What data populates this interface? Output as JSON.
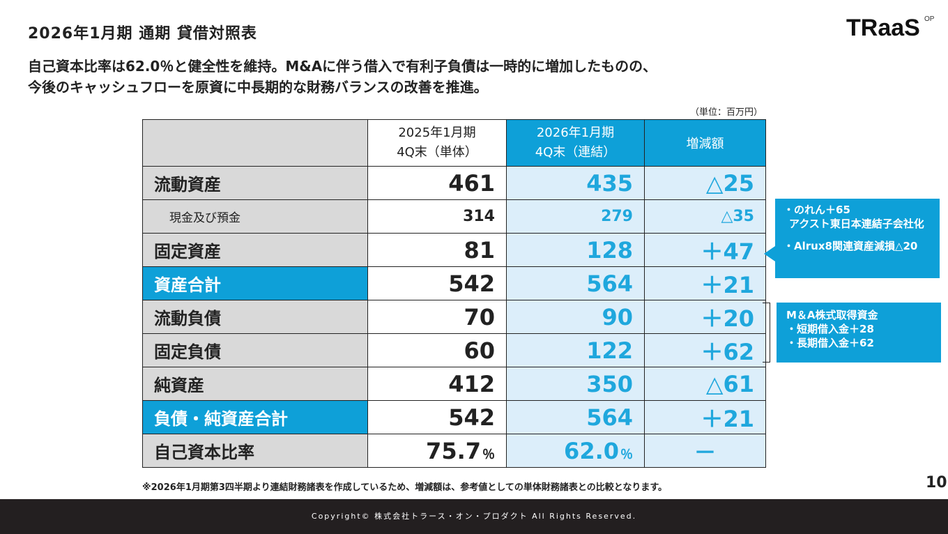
{
  "title": "2026年1月期 通期 貸借対照表",
  "logo": {
    "text": "TRaaS",
    "suffix": "OP"
  },
  "lead": {
    "line1": "自己資本比率は62.0％と健全性を維持。M&Aに伴う借入で有利子負債は一時的に増加したものの、",
    "line2": "今後のキャッシュフローを原資に中長期的な財務バランスの改善を推進。"
  },
  "unit_label": "（単位：百万円）",
  "table": {
    "headers": {
      "col1_line1": "2025年1月期",
      "col1_line2": "4Q末（単体）",
      "col2_line1": "2026年1月期",
      "col2_line2": "4Q末（連結）",
      "col3": "増減額"
    },
    "rows": [
      {
        "label": "流動資産",
        "fy2025": "461",
        "fy2026": "435",
        "delta": "△25"
      },
      {
        "label": "現金及び預金",
        "fy2025": "314",
        "fy2026": "279",
        "delta": "△35"
      },
      {
        "label": "固定資産",
        "fy2025": "81",
        "fy2026": "128",
        "delta": "＋47"
      },
      {
        "label": "資産合計",
        "fy2025": "542",
        "fy2026": "564",
        "delta": "＋21"
      },
      {
        "label": "流動負債",
        "fy2025": "70",
        "fy2026": "90",
        "delta": "＋20"
      },
      {
        "label": "固定負債",
        "fy2025": "60",
        "fy2026": "122",
        "delta": "＋62"
      },
      {
        "label": "純資産",
        "fy2025": "412",
        "fy2026": "350",
        "delta": "△61"
      },
      {
        "label": "負債・純資産合計",
        "fy2025": "542",
        "fy2026": "564",
        "delta": "＋21"
      },
      {
        "label": "自己資本比率",
        "fy2025": "75.7",
        "fy2026": "62.0",
        "pct": "％",
        "delta": "－"
      }
    ]
  },
  "note_goodwill": {
    "line1": "・のれん＋65",
    "line2": "アクスト東日本連結子会社化",
    "line3": "・Alrux8関連資産減損△20"
  },
  "note_ma": {
    "line1": "M＆A株式取得資金",
    "line2": "・短期借入金＋28",
    "line3": "・長期借入金＋62"
  },
  "footnote": "※2026年1月期第3四半期より連結財務諸表を作成しているため、増減額は、参考値としての単体財務諸表との比較となります。",
  "page_number": "10",
  "copyright": "Copyright© 株式会社トラース・オン・プロダクト All Rights Reserved.",
  "colors": {
    "accent": "#0ea0d8",
    "light_blue": "#dceefa",
    "label_gray": "#d9d9d9",
    "footer": "#231f20"
  }
}
